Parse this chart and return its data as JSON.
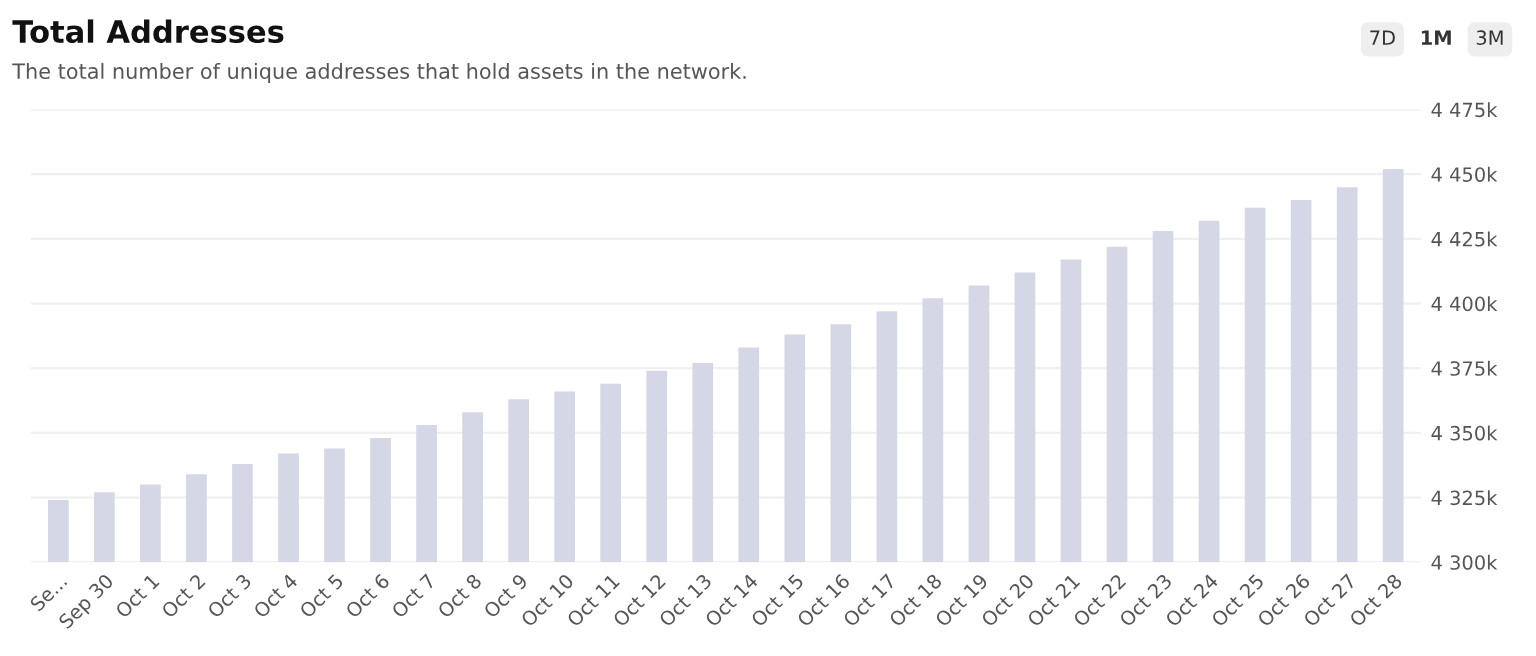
{
  "chart_data": {
    "type": "bar",
    "title": "Total Addresses",
    "subtitle": "The total number of unique addresses that hold assets in the network.",
    "annotations": [
      "7D",
      "1M",
      "3M"
    ],
    "categories": [
      "Se...",
      "Sep 30",
      "Oct 1",
      "Oct 2",
      "Oct 3",
      "Oct 4",
      "Oct 5",
      "Oct 6",
      "Oct 7",
      "Oct 8",
      "Oct 9",
      "Oct 10",
      "Oct 11",
      "Oct 12",
      "Oct 13",
      "Oct 14",
      "Oct 15",
      "Oct 16",
      "Oct 17",
      "Oct 18",
      "Oct 19",
      "Oct 20",
      "Oct 21",
      "Oct 22",
      "Oct 23",
      "Oct 24",
      "Oct 25",
      "Oct 26",
      "Oct 27",
      "Oct 28"
    ],
    "values": [
      4324,
      4327,
      4330,
      4334,
      4338,
      4342,
      4344,
      4348,
      4353,
      4358,
      4363,
      4366,
      4369,
      4374,
      4377,
      4383,
      4388,
      4392,
      4397,
      4402,
      4407,
      4412,
      4417,
      4422,
      4428,
      4432,
      4437,
      4440,
      4445,
      4452
    ],
    "color": "#d5d7e6",
    "ylim": [
      4300,
      4475
    ],
    "yticks": [
      {
        "value": 4300,
        "label": "4 300k"
      },
      {
        "value": 4325,
        "label": "4 325k"
      },
      {
        "value": 4350,
        "label": "4 350k"
      },
      {
        "value": 4375,
        "label": "4 375k"
      },
      {
        "value": 4400,
        "label": "4 400k"
      },
      {
        "value": 4425,
        "label": "4 425k"
      },
      {
        "value": 4450,
        "label": "4 450k"
      },
      {
        "value": 4475,
        "label": "4 475k"
      }
    ],
    "grid": "y"
  }
}
